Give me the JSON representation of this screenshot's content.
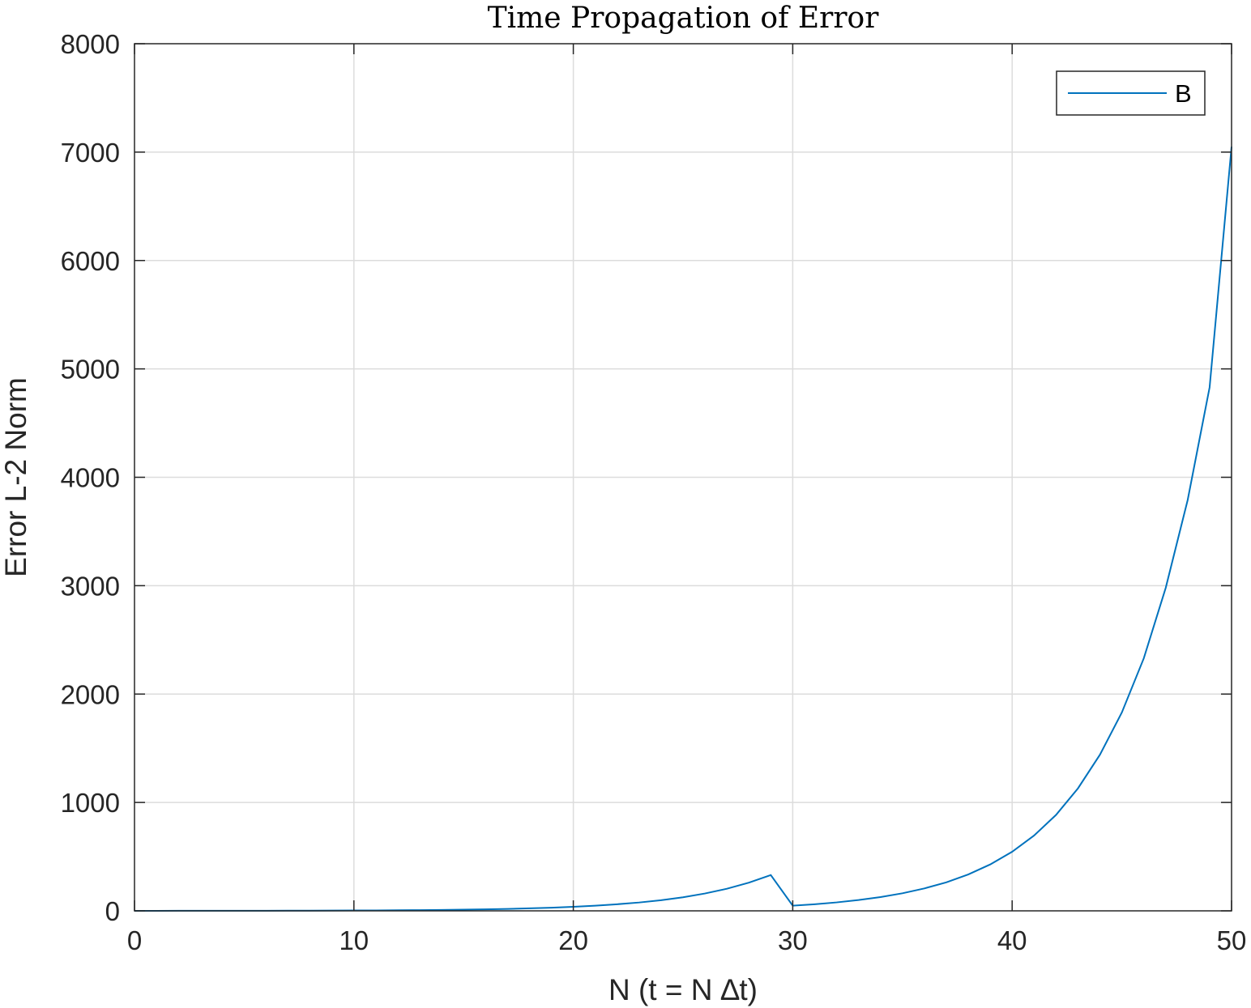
{
  "chart_data": {
    "type": "line",
    "title": "Time Propagation of Error",
    "xlabel": "N (t = N ∆t)",
    "ylabel": "Error L-2 Norm",
    "xlim": [
      0,
      50
    ],
    "ylim": [
      0,
      8000
    ],
    "xticks": [
      0,
      10,
      20,
      30,
      40,
      50
    ],
    "yticks": [
      0,
      1000,
      2000,
      3000,
      4000,
      5000,
      6000,
      7000,
      8000
    ],
    "grid": true,
    "legend_position": "top-right",
    "series": [
      {
        "name": "B",
        "color": "#0072BD",
        "x": [
          0,
          1,
          2,
          3,
          4,
          5,
          6,
          7,
          8,
          9,
          10,
          11,
          12,
          13,
          14,
          15,
          16,
          17,
          18,
          19,
          20,
          21,
          22,
          23,
          24,
          25,
          26,
          27,
          28,
          29,
          30,
          31,
          32,
          33,
          34,
          35,
          36,
          37,
          38,
          39,
          40,
          41,
          42,
          43,
          44,
          45,
          46,
          47,
          48,
          49,
          50
        ],
        "y": [
          0.3,
          0.4,
          0.5,
          0.6,
          0.8,
          1.0,
          1.3,
          1.6,
          2.0,
          2.6,
          3.3,
          4.2,
          5.4,
          6.9,
          8.8,
          11,
          14,
          18,
          23,
          29,
          37,
          48,
          61,
          77,
          98,
          125,
          160,
          204,
          260,
          330,
          48,
          61,
          78,
          100,
          127,
          162,
          207,
          263,
          336,
          428,
          545,
          695,
          885,
          1130,
          1440,
          1830,
          2330,
          2980,
          3790,
          4830,
          7050
        ]
      }
    ]
  }
}
